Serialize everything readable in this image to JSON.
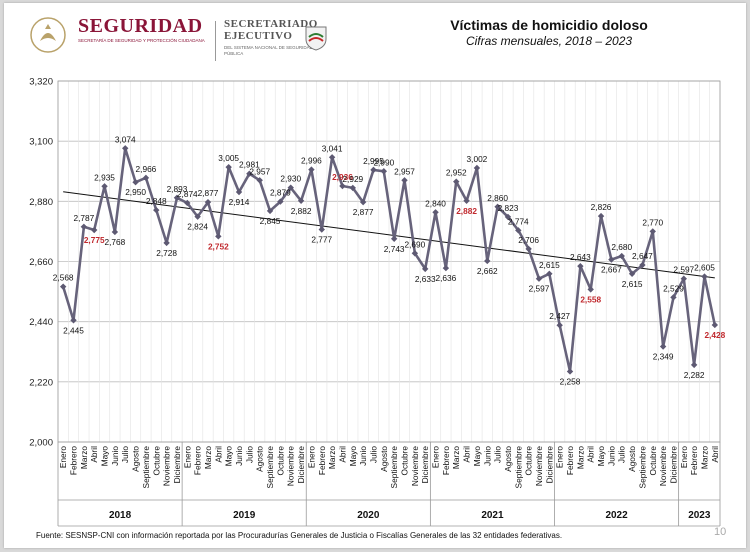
{
  "header": {
    "logo_main": "SEGURIDAD",
    "logo_sub": "SECRETARÍA DE SEGURIDAD Y PROTECCIÓN CIUDADANA",
    "logo2_main": "SECRETARIADO EJECUTIVO",
    "logo2_sub": "DEL SISTEMA NACIONAL DE SEGURIDAD PÚBLICA"
  },
  "footer": {
    "source": "Fuente: SESNSP-CNI con información reportada por las Procuradurías Generales de Justicia o Fiscalías Generales de las 32 entidades federativas.",
    "page_number": "10"
  },
  "colors": {
    "line": "#67637b",
    "marker": "#5d5972",
    "label": "#111111",
    "highlight_label": "#c0282d",
    "trend": "#111111",
    "grid": "#bfbfbf"
  },
  "chart_data": {
    "type": "line",
    "title": "Víctimas de homicidio doloso",
    "subtitle": "Cifras mensuales, 2018 – 2023",
    "xlabel": "",
    "ylabel": "",
    "ylim": [
      2000,
      3320
    ],
    "yticks": [
      "2,000",
      "2,220",
      "2,440",
      "2,660",
      "2,880",
      "3,100",
      "3,320"
    ],
    "ytick_values": [
      2000,
      2220,
      2440,
      2660,
      2880,
      3100,
      3320
    ],
    "grid": true,
    "legend": "none",
    "month_names": [
      "Enero",
      "Febrero",
      "Marzo",
      "Abril",
      "Mayo",
      "Junio",
      "Julio",
      "Agosto",
      "Septiembre",
      "Octubre",
      "Noviembre",
      "Diciembre"
    ],
    "years": [
      {
        "label": "2018",
        "months": 12
      },
      {
        "label": "2019",
        "months": 12
      },
      {
        "label": "2020",
        "months": 12
      },
      {
        "label": "2021",
        "months": 12
      },
      {
        "label": "2022",
        "months": 12
      },
      {
        "label": "2023",
        "months": 4
      }
    ],
    "series": [
      {
        "values": [
          2568,
          2445,
          2787,
          2775,
          2935,
          2768,
          3074,
          2950,
          2966,
          2848,
          2728,
          2893,
          2874,
          2824,
          2877,
          2752,
          3005,
          2914,
          2981,
          2957,
          2845,
          2879,
          2930,
          2882,
          2996,
          2777,
          3041,
          2936,
          2929,
          2877,
          2995,
          2990,
          2743,
          2957,
          2690,
          2633,
          2840,
          2636,
          2952,
          2882,
          3002,
          2662,
          2860,
          2823,
          2774,
          2706,
          2597,
          2615,
          2427,
          2258,
          2643,
          2558,
          2826,
          2667,
          2680,
          2615,
          2647,
          2770,
          2349,
          2529,
          2597,
          2282,
          2605,
          2428
        ],
        "labels": [
          "2,568",
          "2,445",
          "2,787",
          "2,775",
          "2,935",
          "2,768",
          "3,074",
          "2,950",
          "2,966",
          "2,848",
          "2,728",
          "2,893",
          "2,874",
          "2,824",
          "2,877",
          "2,752",
          "3,005",
          "2,914",
          "2,981",
          "2,957",
          "2,845",
          "2,879",
          "2,930",
          "2,882",
          "2,996",
          "2,777",
          "3,041",
          "2,936",
          "2,929",
          "2,877",
          "2,995",
          "2,990",
          "2,743",
          "2,957",
          "2,690",
          "2,633",
          "2,840",
          "2,636",
          "2,952",
          "2,882",
          "3,002",
          "2,662",
          "2,860",
          "2,823",
          "2,774",
          "2,706",
          "2,597",
          "2,615",
          "2,427",
          "2,258",
          "2,643",
          "2,558",
          "2,826",
          "2,667",
          "2,680",
          "2,615",
          "2,647",
          "2,770",
          "2,349",
          "2,529",
          "2,597",
          "2,282",
          "2,605",
          "2,428"
        ]
      }
    ],
    "highlighted_indices": [
      3,
      15,
      27,
      39,
      51,
      63
    ],
    "trendline": {
      "start": 2915,
      "end": 2600
    }
  }
}
